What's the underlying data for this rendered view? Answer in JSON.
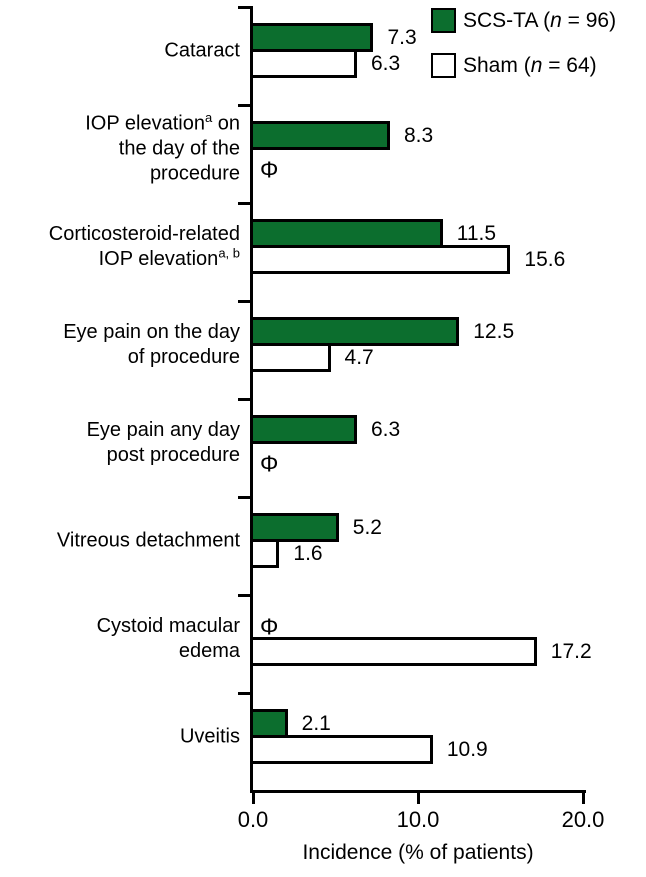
{
  "figure": {
    "background": "#ffffff",
    "ink_color": "#000000",
    "accent_green": "#0c6e2e"
  },
  "legend": {
    "items": [
      {
        "swatch_color": "#0c6e2e",
        "parts": [
          "SCS-TA (",
          {
            "i": "n"
          },
          " = 96)"
        ]
      },
      {
        "swatch_color": "#ffffff",
        "parts": [
          "Sham (",
          {
            "i": "n"
          },
          " = 64)"
        ]
      }
    ]
  },
  "chart_data": {
    "type": "bar",
    "orientation": "horizontal",
    "title": "",
    "xlabel": "Incidence (% of patients)",
    "ylabel": "",
    "xlim": [
      0,
      20
    ],
    "grid": false,
    "legend_position": "top-right",
    "zero_marker": "Φ",
    "xticks": [
      {
        "value": 0,
        "label": "0.0"
      },
      {
        "value": 10,
        "label": "10.0"
      },
      {
        "value": 20,
        "label": "20.0"
      }
    ],
    "categories": [
      {
        "lines": [
          [
            "Cataract"
          ]
        ]
      },
      {
        "lines": [
          [
            "IOP elevation",
            {
              "sup": "a"
            },
            " on"
          ],
          [
            "the day of the"
          ],
          [
            "procedure"
          ]
        ]
      },
      {
        "lines": [
          [
            "Corticosteroid-related"
          ],
          [
            "IOP elevation",
            {
              "sup": "a, b"
            }
          ]
        ]
      },
      {
        "lines": [
          [
            "Eye pain on the day"
          ],
          [
            "of procedure"
          ]
        ]
      },
      {
        "lines": [
          [
            "Eye pain any day"
          ],
          [
            "post procedure"
          ]
        ]
      },
      {
        "lines": [
          [
            "Vitreous detachment"
          ]
        ]
      },
      {
        "lines": [
          [
            "Cystoid macular"
          ],
          [
            "edema"
          ]
        ]
      },
      {
        "lines": [
          [
            "Uveitis"
          ]
        ]
      }
    ],
    "series": [
      {
        "name": "SCS-TA",
        "n": 96,
        "color": "#0c6e2e",
        "values": [
          7.3,
          8.3,
          11.5,
          12.5,
          6.3,
          5.2,
          0,
          2.1
        ],
        "labels": [
          "7.3",
          "8.3",
          "11.5",
          "12.5",
          "6.3",
          "5.2",
          "Φ",
          "2.1"
        ]
      },
      {
        "name": "Sham",
        "n": 64,
        "color": "#ffffff",
        "values": [
          6.3,
          0,
          15.6,
          4.7,
          0,
          1.6,
          17.2,
          10.9
        ],
        "labels": [
          "6.3",
          "Φ",
          "15.6",
          "4.7",
          "Φ",
          "1.6",
          "17.2",
          "10.9"
        ]
      }
    ]
  }
}
